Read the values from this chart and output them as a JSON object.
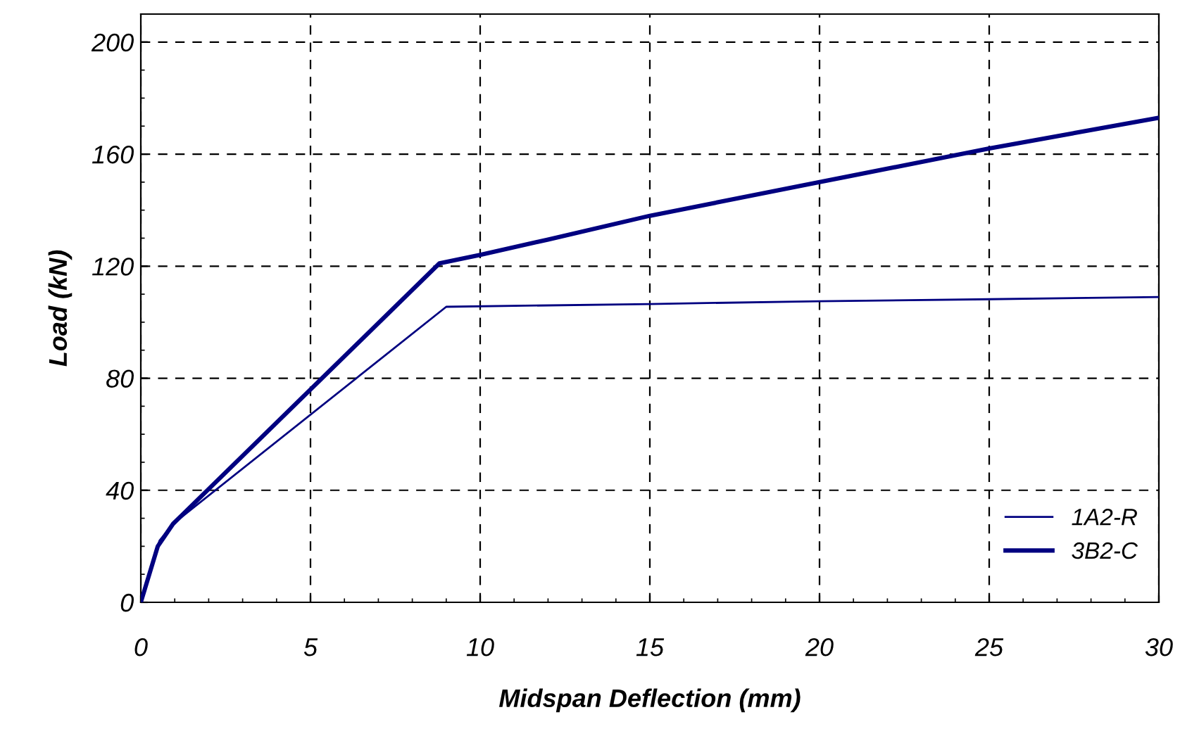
{
  "chart_data": {
    "type": "line",
    "xlabel": "Midspan Deflection (mm)",
    "ylabel": "Load (kN)",
    "xlim": [
      0,
      30
    ],
    "ylim": [
      0,
      210
    ],
    "xticks": [
      0,
      5,
      10,
      15,
      20,
      25,
      30
    ],
    "yticks": [
      0,
      40,
      80,
      120,
      160,
      200
    ],
    "grid": true,
    "legend": "bottom right",
    "marker": "none",
    "line_style": "solid",
    "series": [
      {
        "name": "1A2-R",
        "color": "#000080",
        "x": [
          0,
          0.55,
          0.95,
          9.0,
          15,
          20,
          25,
          30
        ],
        "values": [
          0,
          22,
          28,
          105.5,
          106.5,
          107.5,
          108.2,
          109
        ]
      },
      {
        "name": "3B2-C",
        "color": "#000080",
        "x": [
          0,
          0.5,
          0.95,
          8.8,
          10,
          12,
          15,
          20,
          25,
          30
        ],
        "values": [
          0,
          20,
          28,
          121,
          124,
          129.5,
          138,
          150,
          162,
          173
        ]
      }
    ]
  }
}
